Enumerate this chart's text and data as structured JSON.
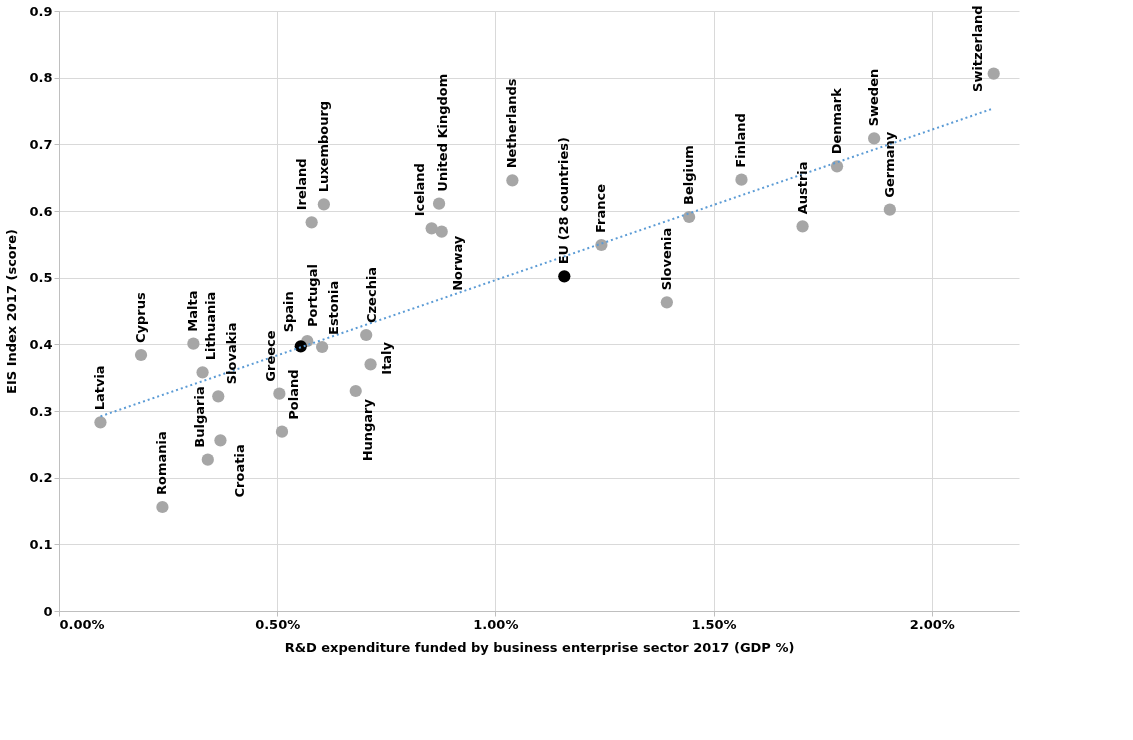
{
  "chart_data": {
    "type": "scatter",
    "xlabel": "R&D expenditure funded by business enterprise sector 2017 (GDP %)",
    "ylabel": "EIS Index 2017 (score)",
    "xlim": [
      0,
      2.2
    ],
    "xticks": [
      {
        "value": 0,
        "label": "0.00%"
      },
      {
        "value": 0.5,
        "label": "0.50%"
      },
      {
        "value": 1,
        "label": "1.00%"
      },
      {
        "value": 1.5,
        "label": "1.50%"
      },
      {
        "value": 2,
        "label": "2.00%"
      }
    ],
    "ylim": [
      0,
      0.9
    ],
    "yticks": [
      0,
      0.1,
      0.2,
      0.3,
      0.4,
      0.5,
      0.6,
      0.7,
      0.8,
      0.9
    ],
    "grid": true,
    "marker": "circle",
    "series": [
      {
        "color": "#a6a6a6",
        "x": [
          0.095,
          0.188,
          0.237,
          0.308,
          0.329,
          0.341,
          0.365,
          0.37,
          0.505,
          0.511,
          0.569,
          0.603,
          0.704,
          0.714,
          0.68,
          0.607,
          0.579,
          0.854,
          0.877,
          0.871,
          1.039,
          1.243,
          1.393,
          1.444,
          1.564,
          1.704,
          1.783,
          1.868,
          1.904,
          2.142
        ],
        "values": [
          0.283,
          0.384,
          0.156,
          0.401,
          0.358,
          0.227,
          0.322,
          0.256,
          0.326,
          0.269,
          0.405,
          0.396,
          0.414,
          0.37,
          0.33,
          0.61,
          0.583,
          0.574,
          0.569,
          0.611,
          0.646,
          0.549,
          0.463,
          0.591,
          0.647,
          0.577,
          0.667,
          0.709,
          0.602,
          0.806
        ]
      },
      {
        "color": "#000000",
        "x": [
          0.554,
          1.158
        ],
        "values": [
          0.397,
          0.502
        ]
      },
      {
        "type": "line",
        "color": "#5b9bd5",
        "line_style": "dotted",
        "marker": "none",
        "x": [
          0.095,
          2.142
        ],
        "values": [
          0.292,
          0.754
        ]
      }
    ],
    "annotations": [
      {
        "text": "Latvia",
        "x": 0.095,
        "y": 0.283
      },
      {
        "text": "Cyprus",
        "x": 0.188,
        "y": 0.384
      },
      {
        "text": "Romania",
        "x": 0.237,
        "y": 0.156
      },
      {
        "text": "Malta",
        "x": 0.308,
        "y": 0.401
      },
      {
        "text": "Lithuania",
        "x": 0.329,
        "y": 0.358
      },
      {
        "text": "Bulgaria",
        "x": 0.341,
        "y": 0.227
      },
      {
        "text": "Slovakia",
        "x": 0.365,
        "y": 0.322
      },
      {
        "text": "Croatia",
        "x": 0.37,
        "y": 0.256
      },
      {
        "text": "Greece",
        "x": 0.505,
        "y": 0.326
      },
      {
        "text": "Poland",
        "x": 0.511,
        "y": 0.269
      },
      {
        "text": "Portugal",
        "x": 0.569,
        "y": 0.405
      },
      {
        "text": "Spain",
        "x": 0.554,
        "y": 0.397
      },
      {
        "text": "Estonia",
        "x": 0.603,
        "y": 0.396
      },
      {
        "text": "Czechia",
        "x": 0.704,
        "y": 0.414
      },
      {
        "text": "Italy",
        "x": 0.714,
        "y": 0.37
      },
      {
        "text": "Hungary",
        "x": 0.68,
        "y": 0.33
      },
      {
        "text": "Luxembourg",
        "x": 0.607,
        "y": 0.61
      },
      {
        "text": "Ireland",
        "x": 0.579,
        "y": 0.583
      },
      {
        "text": "Iceland",
        "x": 0.854,
        "y": 0.574
      },
      {
        "text": "Norway",
        "x": 0.877,
        "y": 0.569
      },
      {
        "text": "United Kingdom",
        "x": 0.871,
        "y": 0.611
      },
      {
        "text": "Netherlands",
        "x": 1.039,
        "y": 0.646
      },
      {
        "text": "EU (28 countries)",
        "x": 1.158,
        "y": 0.502
      },
      {
        "text": "France",
        "x": 1.243,
        "y": 0.549
      },
      {
        "text": "Slovenia",
        "x": 1.393,
        "y": 0.463
      },
      {
        "text": "Belgium",
        "x": 1.444,
        "y": 0.591
      },
      {
        "text": "Finland",
        "x": 1.564,
        "y": 0.647
      },
      {
        "text": "Austria",
        "x": 1.704,
        "y": 0.577
      },
      {
        "text": "Denmark",
        "x": 1.783,
        "y": 0.667
      },
      {
        "text": "Sweden",
        "x": 1.868,
        "y": 0.709
      },
      {
        "text": "Germany",
        "x": 1.904,
        "y": 0.602
      },
      {
        "text": "Switzerland",
        "x": 2.142,
        "y": 0.806
      }
    ]
  }
}
